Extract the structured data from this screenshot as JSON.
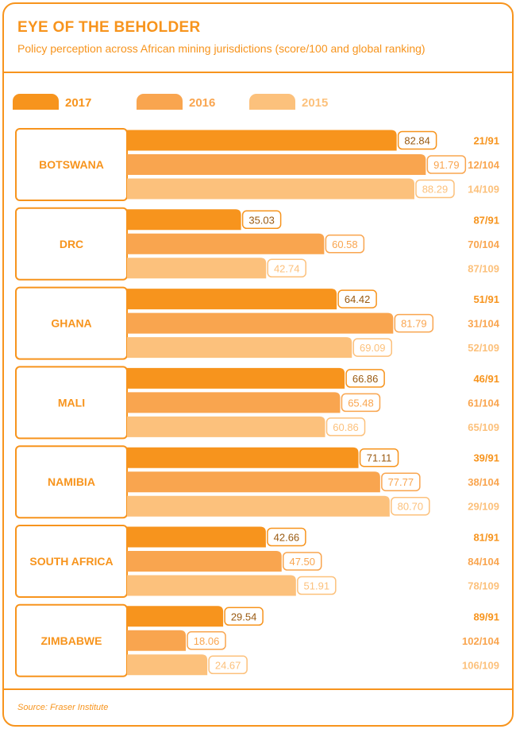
{
  "header": {
    "title": "EYE OF THE BEHOLDER",
    "subtitle": "Policy perception across African mining jurisdictions (score/100 and global ranking)"
  },
  "footer": {
    "source": "Source: Fraser Institute"
  },
  "colors": {
    "s2017": "#f7941d",
    "s2016": "#f9a54f",
    "s2015": "#fcc17c",
    "border": "#f7941d"
  },
  "chart_data": {
    "type": "bar",
    "orientation": "horizontal",
    "title": "EYE OF THE BEHOLDER",
    "subtitle": "Policy perception across African mining jurisdictions (score/100 and global ranking)",
    "xlim": [
      0,
      100
    ],
    "grid": false,
    "legend": "top",
    "categories": [
      "BOTSWANA",
      "DRC",
      "GHANA",
      "MALI",
      "NAMIBIA",
      "SOUTH AFRICA",
      "ZIMBABWE"
    ],
    "series": [
      {
        "name": "2017",
        "values": [
          82.84,
          35.03,
          64.42,
          66.86,
          71.11,
          42.66,
          29.54
        ],
        "labels": [
          "82.84",
          "35.03",
          "64.42",
          "66.86",
          "71.11",
          "42.66",
          "29.54"
        ],
        "ranks": [
          "21/91",
          "87/91",
          "51/91",
          "46/91",
          "39/91",
          "81/91",
          "89/91"
        ]
      },
      {
        "name": "2016",
        "values": [
          91.79,
          60.58,
          81.79,
          65.48,
          77.77,
          47.5,
          18.06
        ],
        "labels": [
          "91.79",
          "60.58",
          "81.79",
          "65.48",
          "77.77",
          "47.50",
          "18.06"
        ],
        "ranks": [
          "12/104",
          "70/104",
          "31/104",
          "61/104",
          "38/104",
          "84/104",
          "102/104"
        ]
      },
      {
        "name": "2015",
        "values": [
          88.29,
          42.74,
          69.09,
          60.86,
          80.7,
          51.91,
          24.67
        ],
        "labels": [
          "88.29",
          "42.74",
          "69.09",
          "60.86",
          "80.70",
          "51.91",
          "24.67"
        ],
        "ranks": [
          "14/109",
          "87/109",
          "52/109",
          "65/109",
          "29/109",
          "78/109",
          "106/109"
        ]
      }
    ]
  }
}
